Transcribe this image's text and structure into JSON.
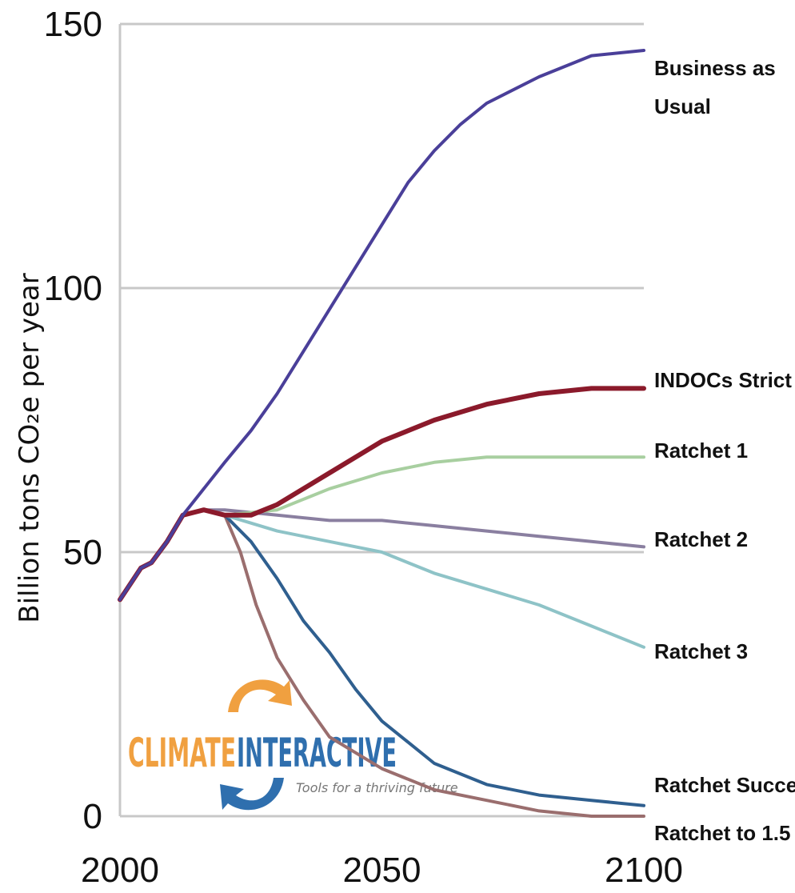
{
  "chart_data": {
    "type": "line",
    "ylabel": "Billion tons CO₂e per year",
    "xlim": [
      2000,
      2100
    ],
    "ylim": [
      0,
      150
    ],
    "x_ticks": [
      2000,
      2050,
      2100
    ],
    "y_ticks": [
      0,
      50,
      100,
      150
    ],
    "grid": "horizontal",
    "legend": "labels at line ends (right)",
    "series": [
      {
        "name": "Business as Usual",
        "color": "#4a3f99",
        "points": [
          [
            2000,
            41
          ],
          [
            2004,
            47
          ],
          [
            2006,
            48
          ],
          [
            2009,
            52
          ],
          [
            2012,
            57
          ],
          [
            2016,
            62
          ],
          [
            2020,
            67
          ],
          [
            2025,
            73
          ],
          [
            2030,
            80
          ],
          [
            2035,
            88
          ],
          [
            2040,
            96
          ],
          [
            2045,
            104
          ],
          [
            2050,
            112
          ],
          [
            2055,
            120
          ],
          [
            2060,
            126
          ],
          [
            2065,
            131
          ],
          [
            2070,
            135
          ],
          [
            2080,
            140
          ],
          [
            2090,
            144
          ],
          [
            2100,
            145
          ]
        ]
      },
      {
        "name": "INDOCs Strict",
        "color": "#8b1a2b",
        "points": [
          [
            2000,
            41
          ],
          [
            2004,
            47
          ],
          [
            2006,
            48
          ],
          [
            2009,
            52
          ],
          [
            2012,
            57
          ],
          [
            2016,
            58
          ],
          [
            2020,
            57
          ],
          [
            2025,
            57
          ],
          [
            2030,
            59
          ],
          [
            2040,
            65
          ],
          [
            2050,
            71
          ],
          [
            2060,
            75
          ],
          [
            2070,
            78
          ],
          [
            2080,
            80
          ],
          [
            2090,
            81
          ],
          [
            2100,
            81
          ]
        ]
      },
      {
        "name": "Ratchet 1",
        "color": "#a8cfa0",
        "points": [
          [
            2016,
            58
          ],
          [
            2020,
            57
          ],
          [
            2030,
            58
          ],
          [
            2040,
            62
          ],
          [
            2050,
            65
          ],
          [
            2060,
            67
          ],
          [
            2070,
            68
          ],
          [
            2080,
            68
          ],
          [
            2090,
            68
          ],
          [
            2100,
            68
          ]
        ]
      },
      {
        "name": "Ratchet 2",
        "color": "#8a7fa0",
        "points": [
          [
            2016,
            58
          ],
          [
            2020,
            58
          ],
          [
            2030,
            57
          ],
          [
            2040,
            56
          ],
          [
            2050,
            56
          ],
          [
            2060,
            55
          ],
          [
            2070,
            54
          ],
          [
            2080,
            53
          ],
          [
            2090,
            52
          ],
          [
            2100,
            51
          ]
        ]
      },
      {
        "name": "Ratchet 3",
        "color": "#8ec3c7",
        "points": [
          [
            2016,
            58
          ],
          [
            2020,
            57
          ],
          [
            2030,
            54
          ],
          [
            2040,
            52
          ],
          [
            2050,
            50
          ],
          [
            2060,
            46
          ],
          [
            2070,
            43
          ],
          [
            2080,
            40
          ],
          [
            2090,
            36
          ],
          [
            2100,
            32
          ]
        ]
      },
      {
        "name": "Ratchet Success",
        "color": "#2f5f8f",
        "points": [
          [
            2016,
            58
          ],
          [
            2020,
            57
          ],
          [
            2025,
            52
          ],
          [
            2030,
            45
          ],
          [
            2035,
            37
          ],
          [
            2040,
            31
          ],
          [
            2045,
            24
          ],
          [
            2050,
            18
          ],
          [
            2055,
            14
          ],
          [
            2060,
            10
          ],
          [
            2070,
            6
          ],
          [
            2080,
            4
          ],
          [
            2090,
            3
          ],
          [
            2100,
            2
          ]
        ]
      },
      {
        "name": "Ratchet to 1.5",
        "color": "#9a6e6e",
        "points": [
          [
            2016,
            58
          ],
          [
            2020,
            57
          ],
          [
            2023,
            50
          ],
          [
            2026,
            40
          ],
          [
            2030,
            30
          ],
          [
            2035,
            22
          ],
          [
            2040,
            15
          ],
          [
            2045,
            12
          ],
          [
            2050,
            9
          ],
          [
            2060,
            5
          ],
          [
            2070,
            3
          ],
          [
            2080,
            1
          ],
          [
            2090,
            0
          ],
          [
            2100,
            0
          ]
        ]
      }
    ]
  },
  "labels": {
    "business_line1": "Business as",
    "business_line2": "Usual",
    "indc": "INDOCs Strict",
    "r1": "Ratchet 1",
    "r2": "Ratchet 2",
    "r3": "Ratchet 3",
    "rsuccess": "Ratchet Success",
    "r15": "Ratchet to 1.5"
  },
  "logo": {
    "word1": "CLIMATE",
    "word2": "INTERACTIVE",
    "tagline": "Tools for a thriving future",
    "orange": "#f0a040",
    "blue": "#2f6fae"
  }
}
